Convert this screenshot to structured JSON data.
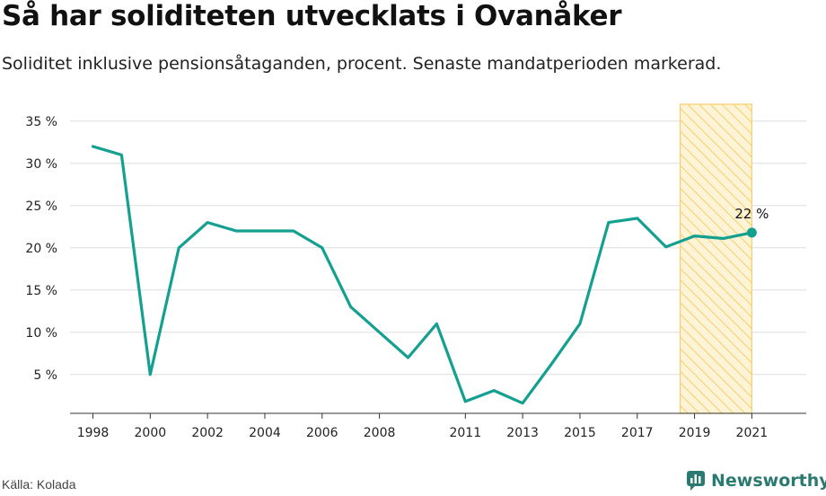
{
  "header": {
    "title": "Så har soliditeten utvecklats i Ovanåker",
    "subtitle": "Soliditet inklusive pensionsåtaganden, procent. Senaste mandatperioden markerad."
  },
  "footer": {
    "source": "Källa: Kolada",
    "brand": "Newsworthy",
    "brand_icon": "newsworthy-logo-icon"
  },
  "colors": {
    "line": "#13a090",
    "highlight_stroke": "#f6cf6a",
    "highlight_fill": "#fdf3d6",
    "grid": "#dddddd",
    "brand": "#2a7a72"
  },
  "chart_data": {
    "type": "line",
    "title": "Så har soliditeten utvecklats i Ovanåker",
    "xlabel": "",
    "ylabel": "",
    "x": [
      1998,
      1999,
      2000,
      2001,
      2002,
      2003,
      2004,
      2005,
      2006,
      2007,
      2008,
      2009,
      2010,
      2011,
      2012,
      2013,
      2014,
      2015,
      2016,
      2017,
      2018,
      2019,
      2020,
      2021
    ],
    "series": [
      {
        "values": [
          32,
          31,
          5,
          20,
          23,
          22,
          22,
          22,
          20,
          13,
          10,
          7,
          11,
          1.8,
          3.1,
          1.6,
          6.2,
          11,
          23,
          23.5,
          20.1,
          21.4,
          21.1,
          21.8
        ]
      }
    ],
    "xticks": [
      "1998",
      "2000",
      "2002",
      "2004",
      "2006",
      "2008",
      "2011",
      "2013",
      "2015",
      "2017",
      "2019",
      "2021"
    ],
    "yticks": [
      "5 %",
      "10 %",
      "15 %",
      "20 %",
      "25 %",
      "30 %",
      "35 %"
    ],
    "ytick_values": [
      5,
      10,
      15,
      20,
      25,
      30,
      35
    ],
    "ylim": [
      0.4,
      37
    ],
    "xlim": [
      1997.2,
      2022.9
    ],
    "highlight_range": [
      2018.5,
      2021
    ],
    "end_label": "22 %",
    "grid": true,
    "legend": "none"
  }
}
